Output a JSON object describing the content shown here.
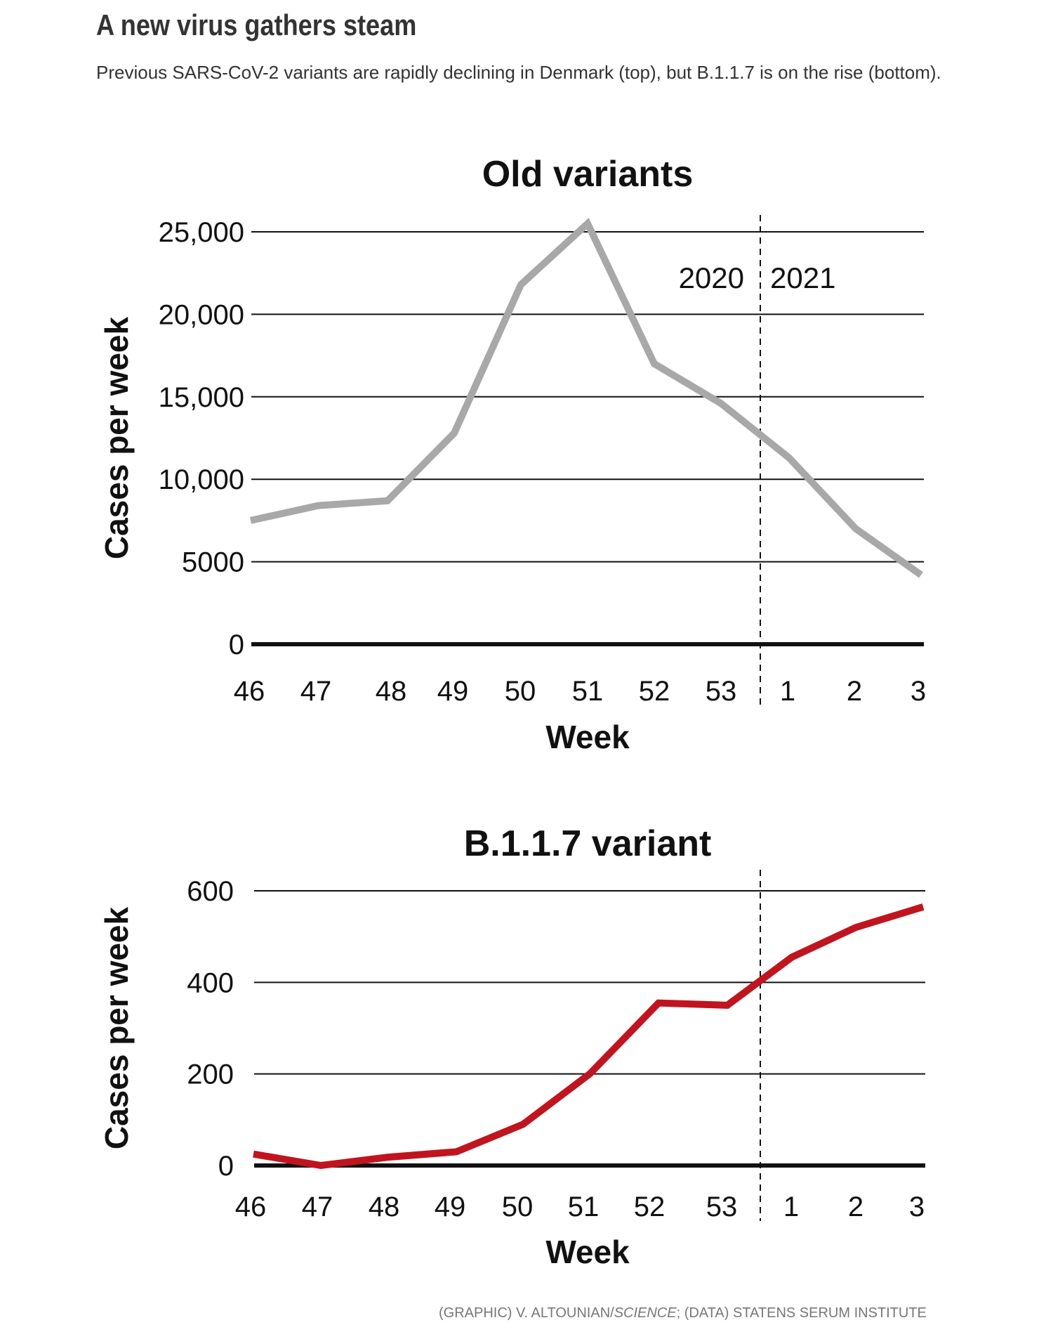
{
  "header": {
    "title": "A new virus gathers steam",
    "subtitle": "Previous SARS-CoV-2 variants are rapidly declining in Denmark (top), but B.1.1.7 is on the rise (bottom)."
  },
  "credit": {
    "graphic": "(GRAPHIC) V. ALTOUNIAN/",
    "publication": "SCIENCE",
    "data": "; (DATA) STATENS SERUM INSTITUTE"
  },
  "chart_data": [
    {
      "type": "line",
      "title": "Old variants",
      "xlabel": "Week",
      "ylabel": "Cases per week",
      "categories": [
        "46",
        "47",
        "48",
        "49",
        "50",
        "51",
        "52",
        "53",
        "1",
        "2",
        "3"
      ],
      "values": [
        7500,
        8400,
        8700,
        12800,
        21800,
        25500,
        17000,
        14600,
        11300,
        7000,
        4200
      ],
      "yticks": [
        0,
        5000,
        10000,
        15000,
        20000,
        25000
      ],
      "ytick_labels": [
        "0",
        "5000",
        "10,000",
        "15,000",
        "20,000",
        "25,000"
      ],
      "ylim": [
        0,
        25000
      ],
      "year_divider": {
        "after": "53",
        "left_label": "2020",
        "right_label": "2021"
      },
      "color": "#a8a8a8",
      "grid": true
    },
    {
      "type": "line",
      "title": "B.1.1.7 variant",
      "xlabel": "Week",
      "ylabel": "Cases per week",
      "categories": [
        "46",
        "47",
        "48",
        "49",
        "50",
        "51",
        "52",
        "53",
        "1",
        "2",
        "3"
      ],
      "values": [
        25,
        0,
        18,
        30,
        90,
        200,
        355,
        350,
        455,
        520,
        565
      ],
      "yticks": [
        0,
        200,
        400,
        600
      ],
      "ytick_labels": [
        "0",
        "200",
        "400",
        "600"
      ],
      "ylim": [
        0,
        600
      ],
      "year_divider": {
        "after": "53"
      },
      "color": "#c0151f",
      "grid": true
    }
  ]
}
